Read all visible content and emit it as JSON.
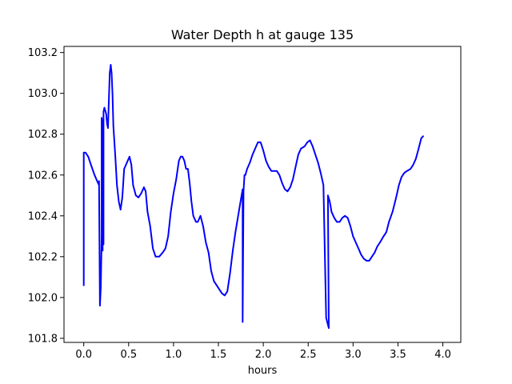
{
  "chart_data": {
    "type": "line",
    "title": "Water Depth h at gauge 135",
    "xlabel": "hours",
    "ylabel": "",
    "xlim": [
      -0.22,
      4.2
    ],
    "ylim": [
      101.78,
      103.23
    ],
    "xticks": [
      0.0,
      0.5,
      1.0,
      1.5,
      2.0,
      2.5,
      3.0,
      3.5,
      4.0
    ],
    "xtick_labels": [
      "0.0",
      "0.5",
      "1.0",
      "1.5",
      "2.0",
      "2.5",
      "3.0",
      "3.5",
      "4.0"
    ],
    "yticks": [
      101.8,
      102.0,
      102.2,
      102.4,
      102.6,
      102.8,
      103.0,
      103.2
    ],
    "ytick_labels": [
      "101.8",
      "102.0",
      "102.2",
      "102.4",
      "102.6",
      "102.8",
      "103.0",
      "103.2"
    ],
    "grid": false,
    "series": [
      {
        "color": "#0000ff",
        "points": [
          [
            0.0,
            102.06
          ],
          [
            0.0,
            102.71
          ],
          [
            0.02,
            102.71
          ],
          [
            0.05,
            102.69
          ],
          [
            0.08,
            102.65
          ],
          [
            0.12,
            102.6
          ],
          [
            0.16,
            102.56
          ],
          [
            0.17,
            102.55
          ],
          [
            0.17,
            102.57
          ],
          [
            0.18,
            101.96
          ],
          [
            0.19,
            102.05
          ],
          [
            0.2,
            102.3
          ],
          [
            0.2,
            102.88
          ],
          [
            0.21,
            102.23
          ],
          [
            0.21,
            102.87
          ],
          [
            0.22,
            102.26
          ],
          [
            0.22,
            102.91
          ],
          [
            0.23,
            102.93
          ],
          [
            0.25,
            102.9
          ],
          [
            0.26,
            102.85
          ],
          [
            0.27,
            102.83
          ],
          [
            0.28,
            102.97
          ],
          [
            0.29,
            103.1
          ],
          [
            0.3,
            103.14
          ],
          [
            0.31,
            103.1
          ],
          [
            0.32,
            103.0
          ],
          [
            0.33,
            102.84
          ],
          [
            0.35,
            102.7
          ],
          [
            0.37,
            102.55
          ],
          [
            0.39,
            102.47
          ],
          [
            0.41,
            102.43
          ],
          [
            0.43,
            102.49
          ],
          [
            0.45,
            102.63
          ],
          [
            0.48,
            102.66
          ],
          [
            0.51,
            102.69
          ],
          [
            0.53,
            102.65
          ],
          [
            0.55,
            102.55
          ],
          [
            0.58,
            102.5
          ],
          [
            0.61,
            102.49
          ],
          [
            0.64,
            102.51
          ],
          [
            0.67,
            102.54
          ],
          [
            0.69,
            102.52
          ],
          [
            0.71,
            102.42
          ],
          [
            0.74,
            102.35
          ],
          [
            0.77,
            102.24
          ],
          [
            0.8,
            102.2
          ],
          [
            0.84,
            102.2
          ],
          [
            0.88,
            102.22
          ],
          [
            0.91,
            102.24
          ],
          [
            0.94,
            102.3
          ],
          [
            0.97,
            102.42
          ],
          [
            1.0,
            102.51
          ],
          [
            1.03,
            102.58
          ],
          [
            1.06,
            102.67
          ],
          [
            1.08,
            102.69
          ],
          [
            1.1,
            102.69
          ],
          [
            1.12,
            102.67
          ],
          [
            1.14,
            102.63
          ],
          [
            1.16,
            102.63
          ],
          [
            1.18,
            102.56
          ],
          [
            1.2,
            102.47
          ],
          [
            1.22,
            102.4
          ],
          [
            1.25,
            102.37
          ],
          [
            1.27,
            102.37
          ],
          [
            1.3,
            102.4
          ],
          [
            1.33,
            102.35
          ],
          [
            1.36,
            102.27
          ],
          [
            1.39,
            102.22
          ],
          [
            1.42,
            102.13
          ],
          [
            1.45,
            102.08
          ],
          [
            1.48,
            102.06
          ],
          [
            1.51,
            102.04
          ],
          [
            1.54,
            102.02
          ],
          [
            1.57,
            102.01
          ],
          [
            1.6,
            102.03
          ],
          [
            1.63,
            102.12
          ],
          [
            1.66,
            102.23
          ],
          [
            1.69,
            102.32
          ],
          [
            1.72,
            102.4
          ],
          [
            1.75,
            102.48
          ],
          [
            1.77,
            102.53
          ],
          [
            1.77,
            101.88
          ],
          [
            1.78,
            102.52
          ],
          [
            1.79,
            102.6
          ],
          [
            1.8,
            102.6
          ],
          [
            1.82,
            102.63
          ],
          [
            1.85,
            102.66
          ],
          [
            1.88,
            102.7
          ],
          [
            1.91,
            102.73
          ],
          [
            1.94,
            102.76
          ],
          [
            1.97,
            102.76
          ],
          [
            2.0,
            102.72
          ],
          [
            2.03,
            102.67
          ],
          [
            2.06,
            102.64
          ],
          [
            2.09,
            102.62
          ],
          [
            2.12,
            102.62
          ],
          [
            2.15,
            102.62
          ],
          [
            2.18,
            102.6
          ],
          [
            2.21,
            102.56
          ],
          [
            2.24,
            102.53
          ],
          [
            2.27,
            102.52
          ],
          [
            2.3,
            102.54
          ],
          [
            2.33,
            102.58
          ],
          [
            2.36,
            102.64
          ],
          [
            2.39,
            102.7
          ],
          [
            2.42,
            102.73
          ],
          [
            2.46,
            102.74
          ],
          [
            2.49,
            102.76
          ],
          [
            2.52,
            102.77
          ],
          [
            2.55,
            102.74
          ],
          [
            2.58,
            102.7
          ],
          [
            2.61,
            102.66
          ],
          [
            2.64,
            102.61
          ],
          [
            2.67,
            102.55
          ],
          [
            2.7,
            101.9
          ],
          [
            2.73,
            101.85
          ],
          [
            2.72,
            102.5
          ],
          [
            2.74,
            102.47
          ],
          [
            2.76,
            102.42
          ],
          [
            2.79,
            102.39
          ],
          [
            2.82,
            102.37
          ],
          [
            2.85,
            102.37
          ],
          [
            2.88,
            102.39
          ],
          [
            2.91,
            102.4
          ],
          [
            2.94,
            102.39
          ],
          [
            2.97,
            102.35
          ],
          [
            3.0,
            102.3
          ],
          [
            3.03,
            102.27
          ],
          [
            3.06,
            102.24
          ],
          [
            3.09,
            102.21
          ],
          [
            3.12,
            102.19
          ],
          [
            3.15,
            102.18
          ],
          [
            3.18,
            102.18
          ],
          [
            3.21,
            102.2
          ],
          [
            3.24,
            102.22
          ],
          [
            3.27,
            102.25
          ],
          [
            3.3,
            102.27
          ],
          [
            3.34,
            102.3
          ],
          [
            3.37,
            102.32
          ],
          [
            3.4,
            102.37
          ],
          [
            3.44,
            102.42
          ],
          [
            3.48,
            102.49
          ],
          [
            3.51,
            102.55
          ],
          [
            3.54,
            102.59
          ],
          [
            3.57,
            102.61
          ],
          [
            3.6,
            102.62
          ],
          [
            3.64,
            102.63
          ],
          [
            3.67,
            102.65
          ],
          [
            3.7,
            102.68
          ],
          [
            3.73,
            102.73
          ],
          [
            3.76,
            102.78
          ],
          [
            3.78,
            102.79
          ]
        ]
      }
    ]
  }
}
